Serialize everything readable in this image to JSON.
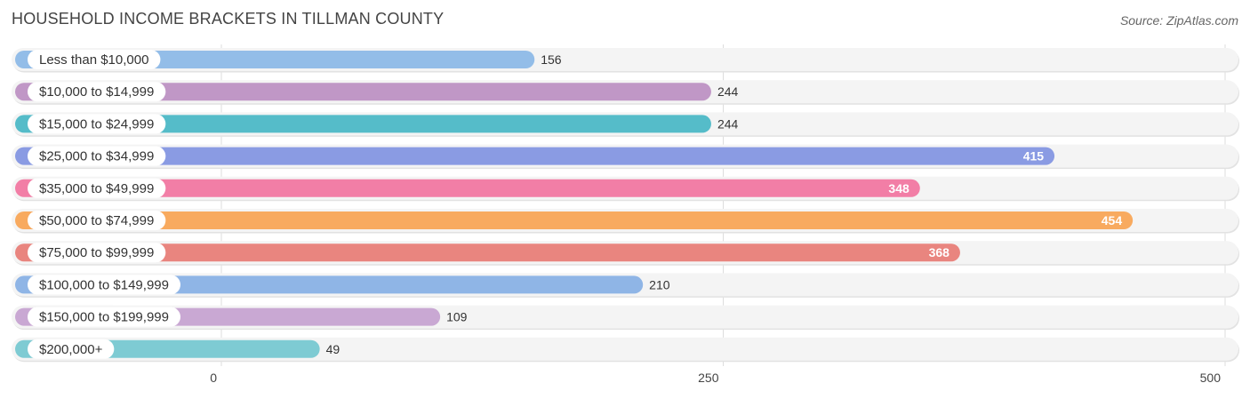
{
  "header": {
    "title": "HOUSEHOLD INCOME BRACKETS IN TILLMAN COUNTY",
    "source": "Source: ZipAtlas.com"
  },
  "chart_data": {
    "type": "bar",
    "orientation": "horizontal",
    "title": "HOUSEHOLD INCOME BRACKETS IN TILLMAN COUNTY",
    "categories": [
      "Less than $10,000",
      "$10,000 to $14,999",
      "$15,000 to $24,999",
      "$25,000 to $34,999",
      "$35,000 to $49,999",
      "$50,000 to $74,999",
      "$75,000 to $99,999",
      "$100,000 to $149,999",
      "$150,000 to $199,999",
      "$200,000+"
    ],
    "values": [
      156,
      244,
      244,
      415,
      348,
      454,
      368,
      210,
      109,
      49
    ],
    "colors": [
      "#93bde8",
      "#c097c6",
      "#55bcc9",
      "#8a9be3",
      "#f27ea6",
      "#f8aa5f",
      "#e9857f",
      "#8fb5e6",
      "#c9a8d3",
      "#7ecbd3"
    ],
    "value_labels_inside": [
      false,
      false,
      false,
      true,
      true,
      true,
      true,
      false,
      false,
      false
    ],
    "xlim": [
      0,
      500
    ],
    "xticks": [
      0,
      250,
      500
    ],
    "xtick_labels": [
      "0",
      "250",
      "500"
    ],
    "xlabel": "",
    "ylabel": "",
    "grid": true
  }
}
